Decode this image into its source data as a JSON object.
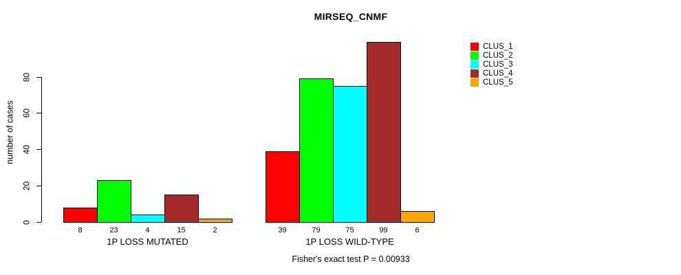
{
  "chart_data": {
    "type": "bar",
    "title": "MIRSEQ_CNMF",
    "ylabel": "number of cases",
    "xlabel": "",
    "footer": "Fisher's exact test P = 0.00933",
    "ylim": [
      0,
      80
    ],
    "yticks": [
      0,
      20,
      40,
      60,
      80
    ],
    "grid": false,
    "legend_position": "right",
    "categories": [
      "1P LOSS MUTATED",
      "1P LOSS WILD-TYPE"
    ],
    "series": [
      {
        "name": "CLUS_1",
        "color": "#ff0000",
        "values": [
          8,
          39
        ]
      },
      {
        "name": "CLUS_2",
        "color": "#00ff00",
        "values": [
          23,
          79
        ]
      },
      {
        "name": "CLUS_3",
        "color": "#00ffff",
        "values": [
          4,
          75
        ]
      },
      {
        "name": "CLUS_4",
        "color": "#a52a2a",
        "values": [
          15,
          99
        ]
      },
      {
        "name": "CLUS_5",
        "color": "#ffa500",
        "values": [
          2,
          6
        ]
      }
    ]
  }
}
